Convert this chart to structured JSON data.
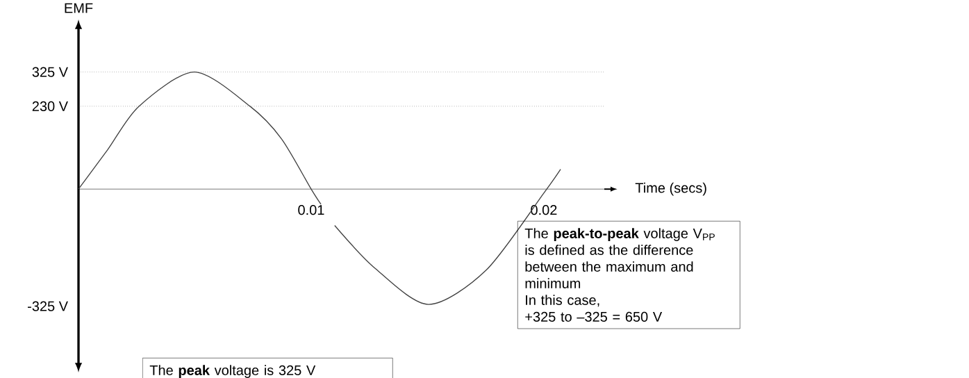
{
  "chart_data": {
    "type": "line",
    "xlabel": "Time (secs)",
    "ylabel": "EMF",
    "x": [
      0,
      0.00125,
      0.0026,
      0.00498,
      0.00737,
      0.00872,
      0.01,
      0.01042,
      0.0107,
      0.01101,
      0.01275,
      0.01504,
      0.01752,
      0.02,
      0.02072
    ],
    "series": [
      {
        "color": "#404040",
        "values": [
          0,
          109,
          230,
          325,
          230,
          140,
          0,
          -42,
          null,
          -101,
          -220,
          -320,
          -225,
          -11,
          55
        ]
      }
    ],
    "xlim": [
      0,
      0.0226
    ],
    "ylim": [
      -478,
      440
    ],
    "xticks": [
      0.01,
      0.02
    ],
    "yticks": [
      {
        "value": 325,
        "label": "325 V"
      },
      {
        "value": 230,
        "label": "230 V"
      },
      {
        "value": -325,
        "label": "-325 V"
      }
    ],
    "ref_lines": [
      {
        "axis": "y",
        "value": 325,
        "line_style": "dotted"
      },
      {
        "axis": "y",
        "value": 230,
        "line_style": "dotted"
      }
    ],
    "marker": "none",
    "line_style": "solid",
    "annotations": [
      "The **peak** voltage is 325 V",
      "The **peak-to-peak** voltage V$_{PP}$ is defined as the difference between the maximum and minimum",
      "In this case,",
      "+325 to –325 = 650 V"
    ]
  }
}
